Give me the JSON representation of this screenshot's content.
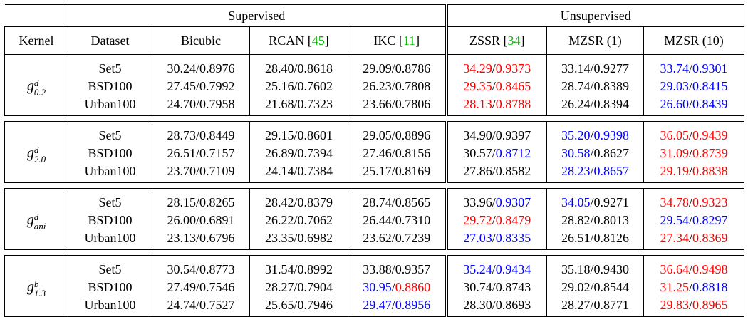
{
  "header": {
    "group_supervised": "Supervised",
    "group_unsupervised": "Unsupervised",
    "columns": [
      {
        "label": "Kernel",
        "ref": ""
      },
      {
        "label": "Dataset",
        "ref": ""
      },
      {
        "label": "Bicubic",
        "ref": ""
      },
      {
        "label": "RCAN [",
        "ref": "45",
        "close": "]"
      },
      {
        "label": "IKC [",
        "ref": "11",
        "close": "]"
      },
      {
        "label": "ZSSR [",
        "ref": "34",
        "close": "]"
      },
      {
        "label": "MZSR (1)",
        "ref": ""
      },
      {
        "label": "MZSR (10)",
        "ref": ""
      }
    ]
  },
  "colors": {
    "best": "#ff0000",
    "second": "#0000ff",
    "ref": "#00bb00"
  },
  "sections": [
    {
      "kernel": {
        "base": "g",
        "sup": "d",
        "sub": "0.2"
      },
      "rows": [
        {
          "dataset": "Set5",
          "cells": [
            {
              "p": "30.24",
              "s": "0.8976"
            },
            {
              "p": "28.40",
              "s": "0.8618"
            },
            {
              "p": "29.09",
              "s": "0.8786"
            },
            {
              "p": "34.29",
              "s": "0.9373",
              "pc": "red",
              "sc": "red"
            },
            {
              "p": "33.14",
              "s": "0.9277"
            },
            {
              "p": "33.74",
              "s": "0.9301",
              "pc": "blue",
              "sc": "blue"
            }
          ]
        },
        {
          "dataset": "BSD100",
          "cells": [
            {
              "p": "27.45",
              "s": "0.7992"
            },
            {
              "p": "25.16",
              "s": "0.7602"
            },
            {
              "p": "26.23",
              "s": "0.7808"
            },
            {
              "p": "29.35",
              "s": "0.8465",
              "pc": "red",
              "sc": "red"
            },
            {
              "p": "28.74",
              "s": "0.8389"
            },
            {
              "p": "29.03",
              "s": "0.8415",
              "pc": "blue",
              "sc": "blue"
            }
          ]
        },
        {
          "dataset": "Urban100",
          "cells": [
            {
              "p": "24.70",
              "s": "0.7958"
            },
            {
              "p": "21.68",
              "s": "0.7323"
            },
            {
              "p": "23.66",
              "s": "0.7806"
            },
            {
              "p": "28.13",
              "s": "0.8788",
              "pc": "red",
              "sc": "red"
            },
            {
              "p": "26.24",
              "s": "0.8394"
            },
            {
              "p": "26.60",
              "s": "0.8439",
              "pc": "blue",
              "sc": "blue"
            }
          ]
        }
      ]
    },
    {
      "kernel": {
        "base": "g",
        "sup": "d",
        "sub": "2.0"
      },
      "rows": [
        {
          "dataset": "Set5",
          "cells": [
            {
              "p": "28.73",
              "s": "0.8449"
            },
            {
              "p": "29.15",
              "s": "0.8601"
            },
            {
              "p": "29.05",
              "s": "0.8896"
            },
            {
              "p": "34.90",
              "s": "0.9397"
            },
            {
              "p": "35.20",
              "s": "0.9398",
              "pc": "blue",
              "sc": "blue"
            },
            {
              "p": "36.05",
              "s": "0.9439",
              "pc": "red",
              "sc": "red"
            }
          ]
        },
        {
          "dataset": "BSD100",
          "cells": [
            {
              "p": "26.51",
              "s": "0.7157"
            },
            {
              "p": "26.89",
              "s": "0.7394"
            },
            {
              "p": "27.46",
              "s": "0.8156"
            },
            {
              "p": "30.57",
              "s": "0.8712",
              "sc": "blue"
            },
            {
              "p": "30.58",
              "s": "0.8627",
              "pc": "blue"
            },
            {
              "p": "31.09",
              "s": "0.8739",
              "pc": "red",
              "sc": "red"
            }
          ]
        },
        {
          "dataset": "Urban100",
          "cells": [
            {
              "p": "23.70",
              "s": "0.7109"
            },
            {
              "p": "24.14",
              "s": "0.7384"
            },
            {
              "p": "25.17",
              "s": "0.8169"
            },
            {
              "p": "27.86",
              "s": "0.8582"
            },
            {
              "p": "28.23",
              "s": "0.8657",
              "pc": "blue",
              "sc": "blue"
            },
            {
              "p": "29.19",
              "s": "0.8838",
              "pc": "red",
              "sc": "red"
            }
          ]
        }
      ]
    },
    {
      "kernel": {
        "base": "g",
        "sup": "d",
        "sub": "ani"
      },
      "rows": [
        {
          "dataset": "Set5",
          "cells": [
            {
              "p": "28.15",
              "s": "0.8265"
            },
            {
              "p": "28.42",
              "s": "0.8379"
            },
            {
              "p": "28.74",
              "s": "0.8565"
            },
            {
              "p": "33.96",
              "s": "0.9307",
              "sc": "blue"
            },
            {
              "p": "34.05",
              "s": "0.9271",
              "pc": "blue"
            },
            {
              "p": "34.78",
              "s": "0.9323",
              "pc": "red",
              "sc": "red"
            }
          ]
        },
        {
          "dataset": "BSD100",
          "cells": [
            {
              "p": "26.00",
              "s": "0.6891"
            },
            {
              "p": "26.22",
              "s": "0.7062"
            },
            {
              "p": "26.44",
              "s": "0.7310"
            },
            {
              "p": "29.72",
              "s": "0.8479",
              "pc": "red",
              "sc": "red"
            },
            {
              "p": "28.82",
              "s": "0.8013"
            },
            {
              "p": "29.54",
              "s": "0.8297",
              "pc": "blue",
              "sc": "blue"
            }
          ]
        },
        {
          "dataset": "Urban100",
          "cells": [
            {
              "p": "23.13",
              "s": "0.6796"
            },
            {
              "p": "23.35",
              "s": "0.6982"
            },
            {
              "p": "23.62",
              "s": "0.7239"
            },
            {
              "p": "27.03",
              "s": "0.8335",
              "pc": "blue",
              "sc": "blue"
            },
            {
              "p": "26.51",
              "s": "0.8126"
            },
            {
              "p": "27.34",
              "s": "0.8369",
              "pc": "red",
              "sc": "red"
            }
          ]
        }
      ]
    },
    {
      "kernel": {
        "base": "g",
        "sup": "b",
        "sub": "1.3"
      },
      "rows": [
        {
          "dataset": "Set5",
          "cells": [
            {
              "p": "30.54",
              "s": "0.8773"
            },
            {
              "p": "31.54",
              "s": "0.8992"
            },
            {
              "p": "33.88",
              "s": "0.9357"
            },
            {
              "p": "35.24",
              "s": "0.9434",
              "pc": "blue",
              "sc": "blue"
            },
            {
              "p": "35.18",
              "s": "0.9430"
            },
            {
              "p": "36.64",
              "s": "0.9498",
              "pc": "red",
              "sc": "red"
            }
          ]
        },
        {
          "dataset": "BSD100",
          "cells": [
            {
              "p": "27.49",
              "s": "0.7546"
            },
            {
              "p": "28.27",
              "s": "0.7904"
            },
            {
              "p": "30.95",
              "s": "0.8860",
              "pc": "blue",
              "sc": "red"
            },
            {
              "p": "30.74",
              "s": "0.8743"
            },
            {
              "p": "29.02",
              "s": "0.8544"
            },
            {
              "p": "31.25",
              "s": "0.8818",
              "pc": "red",
              "sc": "blue"
            }
          ]
        },
        {
          "dataset": "Urban100",
          "cells": [
            {
              "p": "24.74",
              "s": "0.7527"
            },
            {
              "p": "25.65",
              "s": "0.7946"
            },
            {
              "p": "29.47",
              "s": "0.8956",
              "pc": "blue",
              "sc": "blue"
            },
            {
              "p": "28.30",
              "s": "0.8693"
            },
            {
              "p": "28.27",
              "s": "0.8771"
            },
            {
              "p": "29.83",
              "s": "0.8965",
              "pc": "red",
              "sc": "red"
            }
          ]
        }
      ]
    }
  ]
}
